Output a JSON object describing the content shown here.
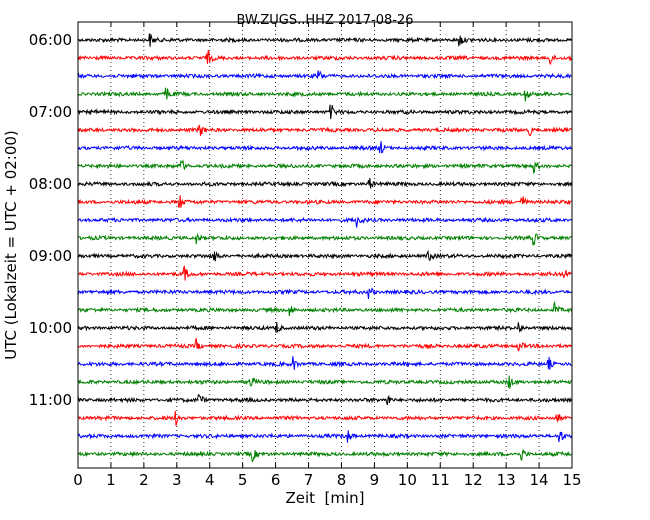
{
  "chart_data": {
    "type": "line",
    "title": "BW.ZUGS..HHZ 2017-08-26",
    "xlabel": "Zeit  [min]",
    "ylabel": "UTC (Lokalzeit = UTC + 02:00)",
    "xlim": [
      0,
      15
    ],
    "x_ticks": [
      "0",
      "1",
      "2",
      "3",
      "4",
      "5",
      "6",
      "7",
      "8",
      "9",
      "10",
      "11",
      "12",
      "13",
      "14",
      "15"
    ],
    "y_ticks": [
      {
        "label": "06:00",
        "row": 0
      },
      {
        "label": "07:00",
        "row": 4
      },
      {
        "label": "08:00",
        "row": 8
      },
      {
        "label": "09:00",
        "row": 12
      },
      {
        "label": "10:00",
        "row": 16
      },
      {
        "label": "11:00",
        "row": 20
      }
    ],
    "row_interval_min": 15,
    "grid": true,
    "colors": [
      "#000000",
      "#ff0000",
      "#0000ff",
      "#008000"
    ],
    "traces": [
      {
        "start": "06:00",
        "events": [
          2.2,
          11.6
        ]
      },
      {
        "start": "06:15",
        "events": [
          3.95,
          14.35
        ]
      },
      {
        "start": "06:30",
        "events": [
          7.3
        ]
      },
      {
        "start": "06:45",
        "events": [
          2.7,
          13.6
        ]
      },
      {
        "start": "07:00",
        "events": [
          7.7
        ]
      },
      {
        "start": "07:15",
        "events": [
          3.7,
          13.7
        ]
      },
      {
        "start": "07:30",
        "events": [
          9.2
        ]
      },
      {
        "start": "07:45",
        "events": [
          3.15,
          13.85
        ]
      },
      {
        "start": "08:00",
        "events": [
          8.85
        ]
      },
      {
        "start": "08:15",
        "events": [
          3.1,
          13.5
        ]
      },
      {
        "start": "08:30",
        "events": [
          8.5
        ]
      },
      {
        "start": "08:45",
        "events": [
          3.6,
          13.85
        ]
      },
      {
        "start": "09:00",
        "events": [
          4.15,
          10.65
        ]
      },
      {
        "start": "09:15",
        "events": [
          3.25,
          14.75
        ]
      },
      {
        "start": "09:30",
        "events": [
          8.85
        ]
      },
      {
        "start": "09:45",
        "events": [
          6.45,
          14.5
        ]
      },
      {
        "start": "10:00",
        "events": [
          6.05,
          13.4
        ]
      },
      {
        "start": "10:15",
        "events": [
          3.6,
          13.4
        ]
      },
      {
        "start": "10:30",
        "events": [
          6.55,
          14.3
        ]
      },
      {
        "start": "10:45",
        "events": [
          5.25,
          13.1
        ]
      },
      {
        "start": "11:00",
        "events": [
          3.7,
          9.4
        ]
      },
      {
        "start": "11:15",
        "events": [
          3.0,
          14.55
        ]
      },
      {
        "start": "11:30",
        "events": [
          8.2,
          14.65
        ]
      },
      {
        "start": "11:45",
        "events": [
          5.3,
          13.5
        ]
      }
    ]
  }
}
